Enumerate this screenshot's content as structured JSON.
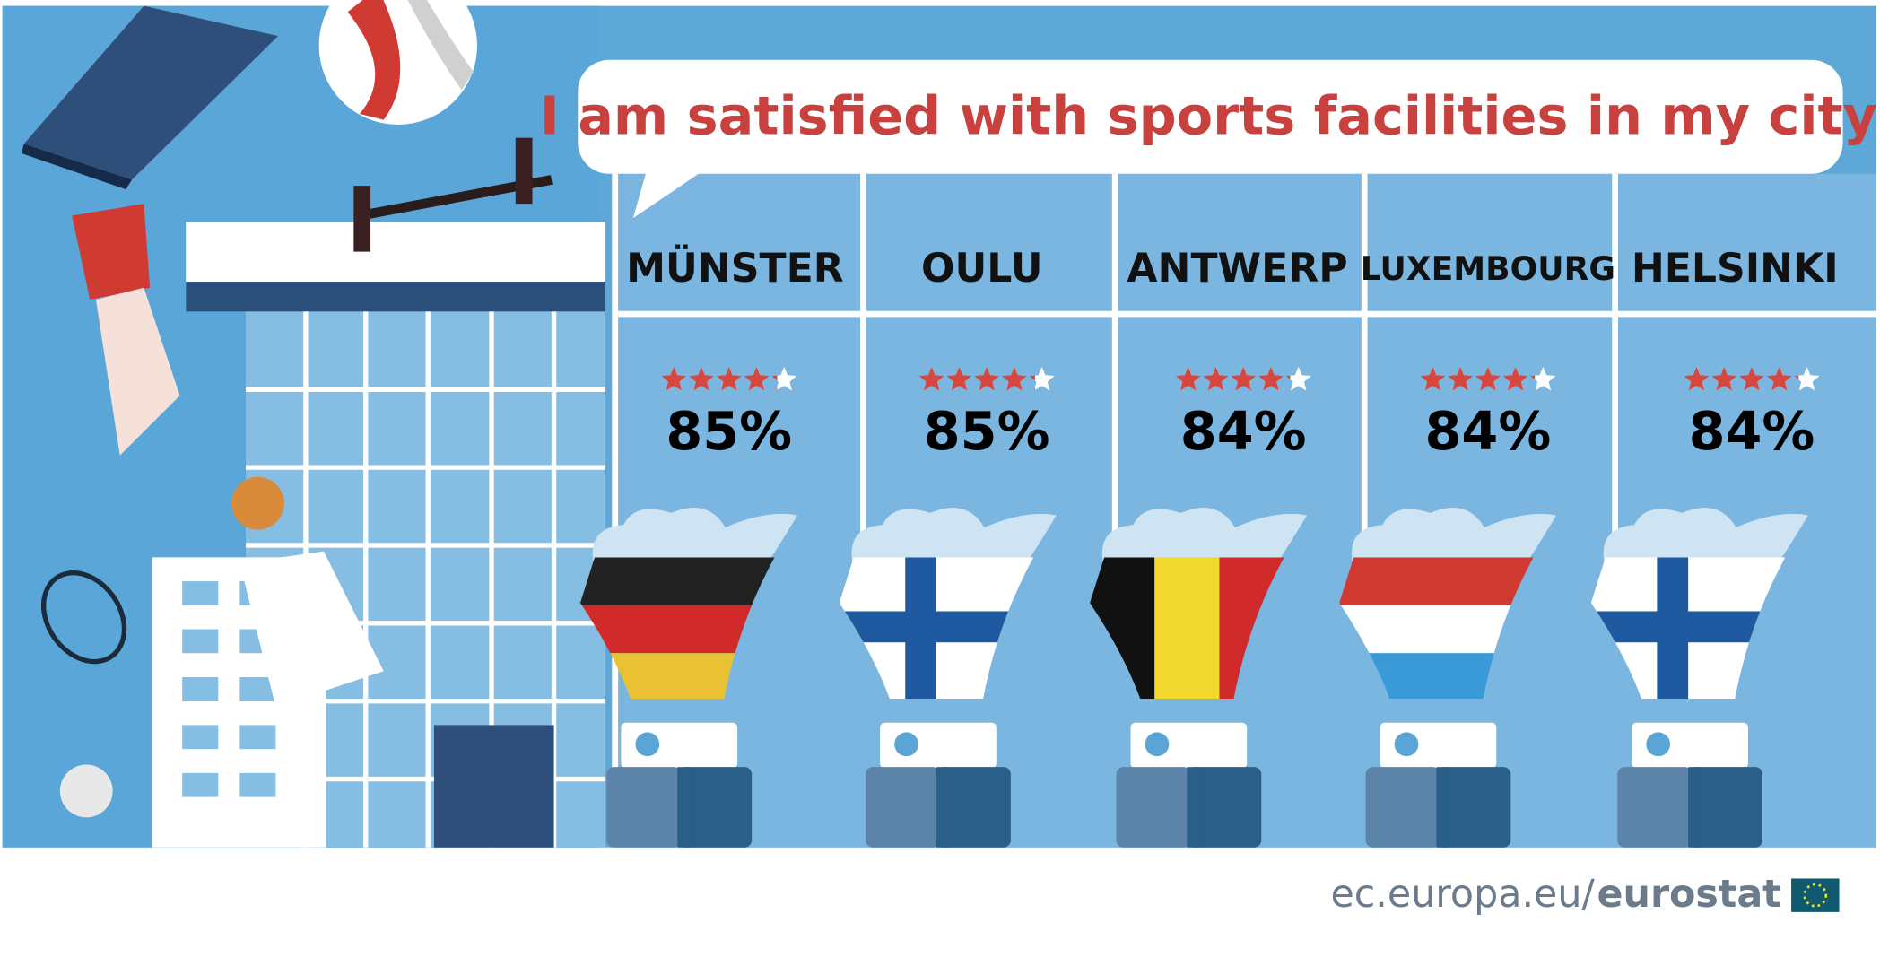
{
  "chart_data": {
    "type": "rating",
    "title": "I am satisfied with sports facilities in my city",
    "categories": [
      "MÜNSTER",
      "OULU",
      "ANTWERP",
      "LUXEMBOURG",
      "HELSINKI"
    ],
    "values": [
      85,
      85,
      84,
      84,
      84
    ],
    "value_labels": [
      "85%",
      "85%",
      "84%",
      "84%",
      "84%"
    ],
    "star_color": "#d5473f",
    "source": {
      "site": "ec.europa.eu/",
      "brand": "eurostat"
    }
  }
}
